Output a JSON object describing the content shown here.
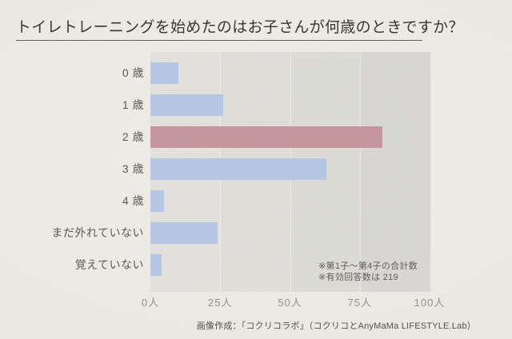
{
  "page": {
    "title": "トイレトレーニングを始めたのはお子さんが何歳のときですか？",
    "credit": "画像作成：「コクリコラボ」（コクリコとAnyMaMa LIFESTYLE.Lab）"
  },
  "notes": [
    "※第1子〜第4子の合計数",
    "※有効回答数は 219"
  ],
  "chart_data": {
    "type": "bar",
    "orientation": "horizontal",
    "title": "トイレトレーニングを始めたのはお子さんが何歳のときですか？",
    "categories": [
      "0 歳",
      "1 歳",
      "2 歳",
      "3 歳",
      "4 歳",
      "まだ外れていない",
      "覚えていない"
    ],
    "values": [
      10,
      26,
      83,
      63,
      5,
      24,
      4
    ],
    "unit": "人",
    "highlight_index": 2,
    "highlighted_category": "2 歳",
    "xlim": [
      0,
      100
    ],
    "x_tick_values": [
      0,
      25,
      50,
      75,
      100
    ],
    "x_tick_labels": [
      "0人",
      "25人",
      "50人",
      "75人",
      "100人"
    ],
    "xlabel": "",
    "ylabel": "",
    "legend": "none",
    "grid": "faint vertical lines every 25",
    "annotations": [
      "※第1子〜第4子の合計数",
      "※有効回答数は 219"
    ],
    "valid_responses": 219,
    "colors": {
      "bar": "#b2c3e2",
      "bar_highlight": "#c09298",
      "plot_columns": [
        "#e0dfda",
        "#dcdbd6",
        "#d9d8d3",
        "#d5d4d0"
      ],
      "text": "#54524b",
      "tick_text": "#8e8c85"
    }
  }
}
